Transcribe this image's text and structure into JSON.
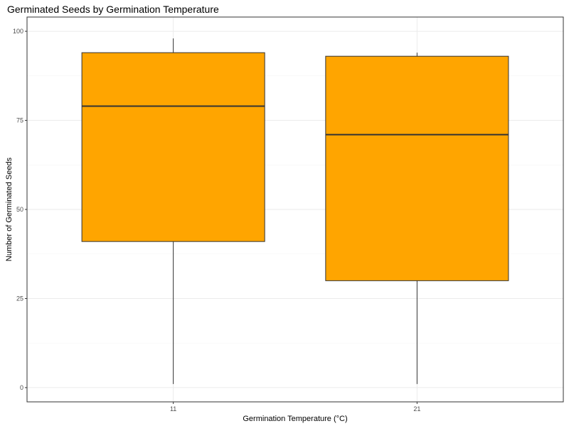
{
  "chart_data": {
    "type": "box",
    "title": "Germinated Seeds by Germination Temperature",
    "xlabel": "Germination Temperature (°C)",
    "ylabel": "Number of Germinated Seeds",
    "categories": [
      "11",
      "21"
    ],
    "boxes": [
      {
        "category": "11",
        "min": 1,
        "q1": 41,
        "median": 79,
        "q3": 94,
        "max": 98
      },
      {
        "category": "21",
        "min": 1,
        "q1": 30,
        "median": 71,
        "q3": 93,
        "max": 94
      }
    ],
    "yticks": [
      0,
      25,
      50,
      75,
      100
    ],
    "ylim": [
      -4,
      104
    ],
    "grid": true,
    "legend": "none",
    "colors": {
      "box_fill": "#FFA500",
      "box_stroke": "#333333",
      "median": "#333333",
      "whisker": "#333333",
      "grid_major": "#EBEBEB",
      "grid_minor": "#F5F5F5",
      "panel_border": "#333333"
    }
  }
}
